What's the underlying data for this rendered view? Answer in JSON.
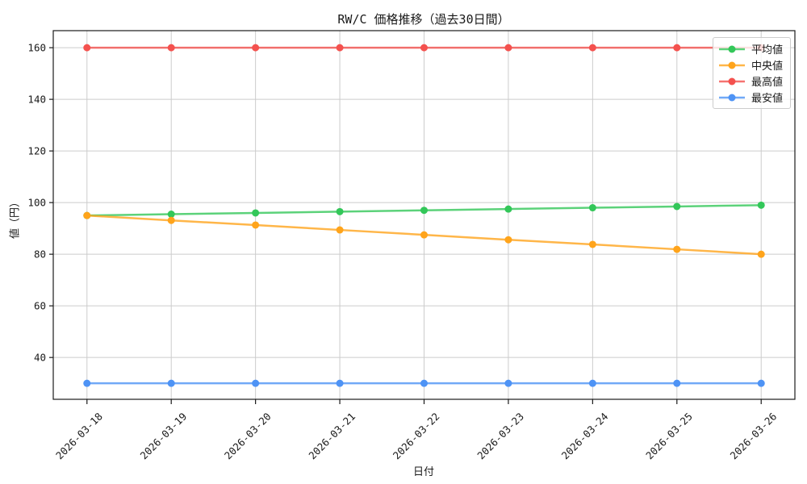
{
  "chart_data": {
    "type": "line",
    "title": "RW/C 価格推移（過去30日間）",
    "xlabel": "日付",
    "ylabel": "値（円）",
    "categories": [
      "2026-03-18",
      "2026-03-19",
      "2026-03-20",
      "2026-03-21",
      "2026-03-22",
      "2026-03-23",
      "2026-03-24",
      "2026-03-25",
      "2026-03-26"
    ],
    "series": [
      {
        "id": "average",
        "name": "平均値",
        "color": "#33c759",
        "values": [
          95,
          95.5,
          96,
          96.5,
          97,
          97.5,
          98,
          98.5,
          99
        ]
      },
      {
        "id": "median",
        "name": "中央値",
        "color": "#ffa41b",
        "values": [
          95,
          93.1,
          91.3,
          89.4,
          87.5,
          85.6,
          83.8,
          81.9,
          80
        ]
      },
      {
        "id": "high",
        "name": "最高値",
        "color": "#f4514e",
        "values": [
          160,
          160,
          160,
          160,
          160,
          160,
          160,
          160,
          160
        ]
      },
      {
        "id": "low",
        "name": "最安値",
        "color": "#4e93f5",
        "values": [
          30,
          30,
          30,
          30,
          30,
          30,
          30,
          30,
          30
        ]
      }
    ],
    "yticks": [
      40,
      60,
      80,
      100,
      120,
      140,
      160
    ],
    "ylim": [
      23.8,
      166.6
    ],
    "xlim": [
      -0.4,
      8.4
    ],
    "grid": true,
    "legend_position": "upper right",
    "colors": {
      "grid": "#cccccc",
      "spine": "#1a1a1a",
      "text": "#1a1a1a",
      "legend_border": "#cccccc"
    }
  }
}
